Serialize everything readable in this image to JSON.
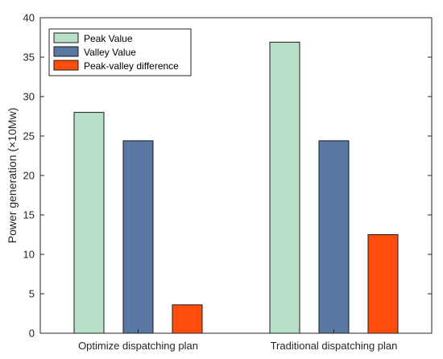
{
  "chart_data": {
    "type": "bar",
    "title": "",
    "xlabel": "",
    "ylabel": "Power generation (×10Mw)",
    "categories": [
      "Optimize dispatching plan",
      "Traditional dispatching plan"
    ],
    "series": [
      {
        "name": "Peak Value",
        "values": [
          28.0,
          36.9
        ],
        "color": "#b8e0c8"
      },
      {
        "name": "Valley Value",
        "values": [
          24.4,
          24.4
        ],
        "color": "#5a78a3"
      },
      {
        "name": "Peak-valley difference",
        "values": [
          3.6,
          12.5
        ],
        "color": "#ff4d0d"
      }
    ],
    "ylim": [
      0,
      40
    ],
    "yticks": [
      0,
      5,
      10,
      15,
      20,
      25,
      30,
      35,
      40
    ],
    "grid": false,
    "legend_position": "top-left"
  }
}
